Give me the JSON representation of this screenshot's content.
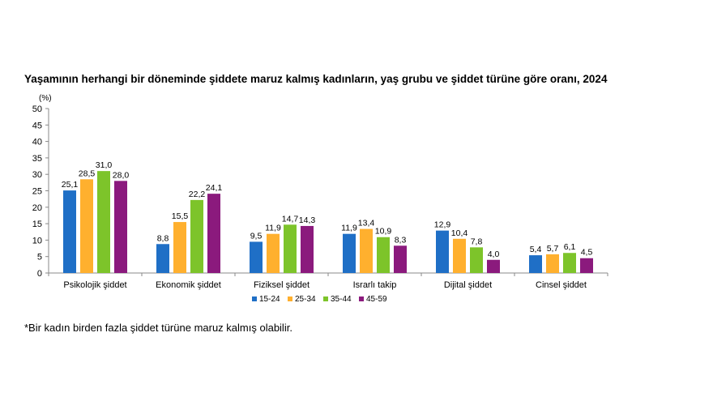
{
  "chart_data": {
    "type": "bar",
    "title": "Yaşamının herhangi bir döneminde şiddete maruz kalmış kadınların, yaş grubu ve şiddet türüne göre oranı, 2024",
    "ylabel": "(%)",
    "xlabel": "",
    "ylim": [
      0,
      50
    ],
    "yticks": [
      0,
      5,
      10,
      15,
      20,
      25,
      30,
      35,
      40,
      45,
      50
    ],
    "grid": false,
    "legend_position": "bottom",
    "categories": [
      "Psikolojik şiddet",
      "Ekonomik şiddet",
      "Fiziksel şiddet",
      "Israrlı takip",
      "Dijital şiddet",
      "Cinsel şiddet"
    ],
    "series": [
      {
        "name": "15-24",
        "color": "#1f6fc6",
        "values": [
          25.1,
          8.8,
          9.5,
          11.9,
          12.9,
          5.4
        ],
        "labels": [
          "25,1",
          "8,8",
          "9,5",
          "11,9",
          "12,9",
          "5,4"
        ]
      },
      {
        "name": "25-34",
        "color": "#ffb02e",
        "values": [
          28.5,
          15.5,
          11.9,
          13.4,
          10.4,
          5.7
        ],
        "labels": [
          "28,5",
          "15,5",
          "11,9",
          "13,4",
          "10,4",
          "5,7"
        ]
      },
      {
        "name": "35-44",
        "color": "#7dc42a",
        "values": [
          31.0,
          22.2,
          14.7,
          10.9,
          7.8,
          6.1
        ],
        "labels": [
          "31,0",
          "22,2",
          "14,7",
          "10,9",
          "7,8",
          "6,1"
        ]
      },
      {
        "name": "45-59",
        "color": "#8b1a7d",
        "values": [
          28.0,
          24.1,
          14.3,
          8.3,
          4.0,
          4.5
        ],
        "labels": [
          "28,0",
          "24,1",
          "14,3",
          "8,3",
          "4,0",
          "4,5"
        ]
      }
    ]
  },
  "footnote": "*Bir kadın birden fazla şiddet türüne maruz kalmış olabilir."
}
